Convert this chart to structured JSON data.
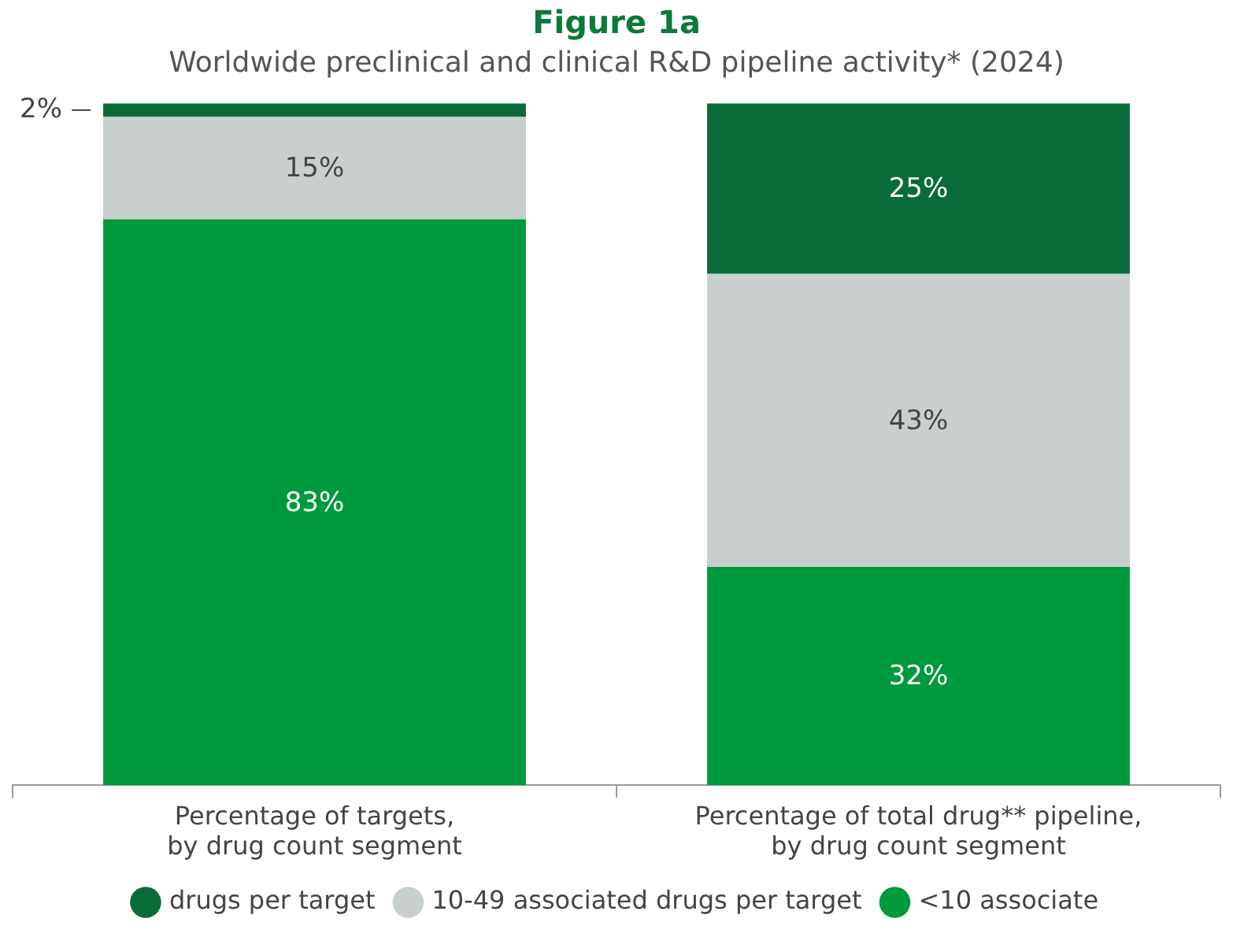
{
  "chart_data": {
    "type": "bar",
    "stacked": true,
    "title": "Figure 1a",
    "subtitle": "Worldwide preclinical and clinical R&D pipeline activity* (2024)",
    "categories": [
      "Percentage of targets,\nby drug count segment",
      "Percentage of total drug** pipeline,\nby drug count segment"
    ],
    "series": [
      {
        "name": "<10 associate",
        "color": "#009a3e",
        "values": [
          83,
          32
        ],
        "value_labels": [
          "83%",
          "32%"
        ]
      },
      {
        "name": "10-49 associated drugs per target",
        "color": "#c8cfcc",
        "values": [
          15,
          43
        ],
        "value_labels": [
          "15%",
          "43%"
        ]
      },
      {
        "name": "drugs per target",
        "color": "#0a6b3a",
        "values": [
          2,
          25
        ],
        "value_labels": [
          "2%",
          "25%"
        ]
      }
    ],
    "legend": "bottom",
    "grid": false
  }
}
